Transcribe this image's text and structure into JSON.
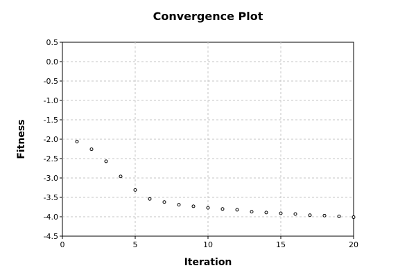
{
  "chart_data": {
    "type": "scatter",
    "title": "Convergence Plot",
    "xlabel": "Iteration",
    "ylabel": "Fitness",
    "xlim": [
      0,
      20
    ],
    "ylim": [
      -4.5,
      0.5
    ],
    "xticks": [
      0,
      5,
      10,
      15,
      20
    ],
    "yticks": [
      0.5,
      0.0,
      -0.5,
      -1.0,
      -1.5,
      -2.0,
      -2.5,
      -3.0,
      -3.5,
      -4.0,
      -4.5
    ],
    "xtick_labels": [
      "0",
      "5",
      "10",
      "15",
      "20"
    ],
    "ytick_labels": [
      "0.5",
      "0.0",
      "-0.5",
      "-1.0",
      "-1.5",
      "-2.0",
      "-2.5",
      "-3.0",
      "-3.5",
      "-4.0",
      "-4.5"
    ],
    "grid": true,
    "series": [
      {
        "x": [
          1,
          2,
          3,
          4,
          5,
          6,
          7,
          8,
          9,
          10,
          11,
          12,
          13,
          14,
          15,
          16,
          17,
          18,
          19,
          20
        ],
        "y": [
          -2.06,
          -2.26,
          -2.57,
          -2.96,
          -3.31,
          -3.54,
          -3.62,
          -3.69,
          -3.73,
          -3.77,
          -3.8,
          -3.82,
          -3.87,
          -3.89,
          -3.91,
          -3.93,
          -3.96,
          -3.97,
          -3.99,
          -4.01
        ]
      }
    ]
  }
}
